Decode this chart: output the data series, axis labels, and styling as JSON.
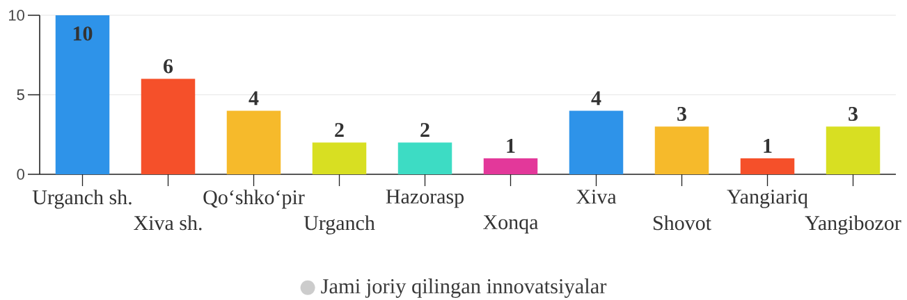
{
  "chart_data": {
    "type": "bar",
    "categories": [
      "Urganch sh.",
      "Xiva sh.",
      "Qo‘shko‘pir",
      "Urganch",
      "Hazorasp",
      "Xonqa",
      "Xiva",
      "Shovot",
      "Yangiariq",
      "Yangibozor"
    ],
    "series": [
      {
        "name": "Jami joriy qilingan innovatsiyalar",
        "color": "#cccccc",
        "colors": [
          "#2e93e9",
          "#f5502a",
          "#f6ba2b",
          "#d8df22",
          "#3ddcc4",
          "#e3389a",
          "#2e93e9",
          "#f6ba2b",
          "#f5502a",
          "#d8df22"
        ],
        "values": [
          10,
          6,
          4,
          2,
          2,
          1,
          4,
          3,
          1,
          3
        ]
      }
    ],
    "ylim": [
      0,
      10
    ],
    "yticks": [
      0,
      5,
      10
    ],
    "grid": "y",
    "legend": "bottom",
    "data_labels": true
  }
}
